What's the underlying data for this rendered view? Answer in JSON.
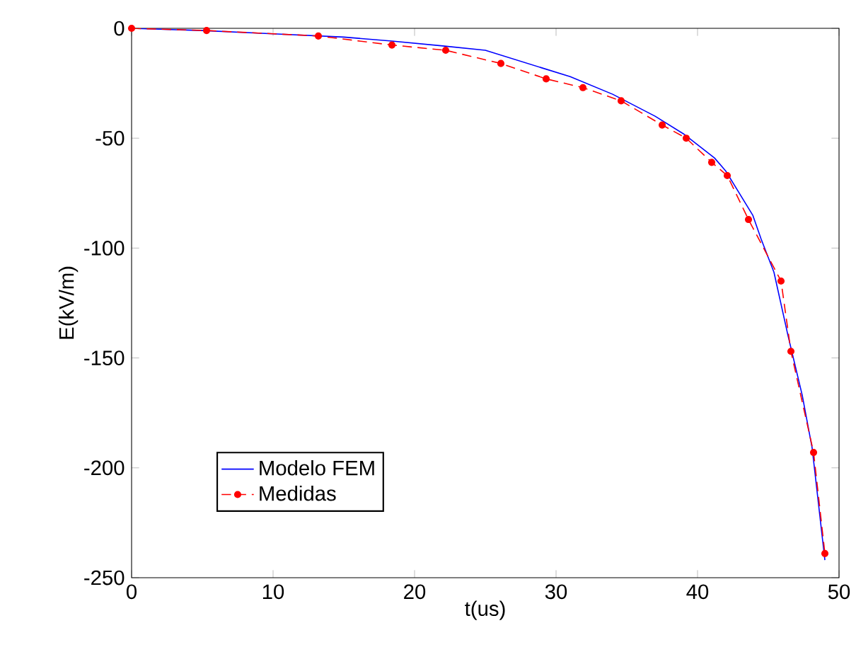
{
  "chart_data": {
    "type": "line",
    "xlabel": "t(us)",
    "ylabel": "E(kV/m)",
    "xlim": [
      0,
      50
    ],
    "ylim": [
      -250,
      0
    ],
    "xticks": [
      0,
      10,
      20,
      30,
      40,
      50
    ],
    "yticks": [
      -250,
      -200,
      -150,
      -100,
      -50,
      0
    ],
    "grid": false,
    "legend": "bottom left",
    "series": [
      {
        "name": "Modelo FEM",
        "color": "#0000ff",
        "line_style": "solid",
        "marker": "none",
        "x": [
          0,
          5,
          10,
          15,
          18.4,
          22,
          25,
          29,
          31,
          34,
          37,
          39,
          41.2,
          42,
          43.9,
          44.5,
          45.4,
          46.4,
          47.4,
          48.1,
          49
        ],
        "values": [
          0,
          -1,
          -2.5,
          -4,
          -5.8,
          -8,
          -10,
          -18,
          -22,
          -30,
          -40,
          -48,
          -59,
          -65,
          -85,
          -96,
          -111,
          -140,
          -167,
          -191,
          -242
        ]
      },
      {
        "name": "Medidas",
        "color": "#ff0000",
        "line_style": "dashed",
        "marker": "circle",
        "x": [
          0,
          5.3,
          13.2,
          18.4,
          22.2,
          26.1,
          29.3,
          31.9,
          34.6,
          37.5,
          39.2,
          41.0,
          42.1,
          43.6,
          45.9,
          46.6,
          48.2,
          49.0
        ],
        "values": [
          0,
          -1,
          -3.5,
          -7.6,
          -10,
          -16,
          -23,
          -27,
          -33,
          -44,
          -50,
          -61,
          -67,
          -87,
          -115,
          -147,
          -193,
          -239
        ]
      }
    ]
  }
}
